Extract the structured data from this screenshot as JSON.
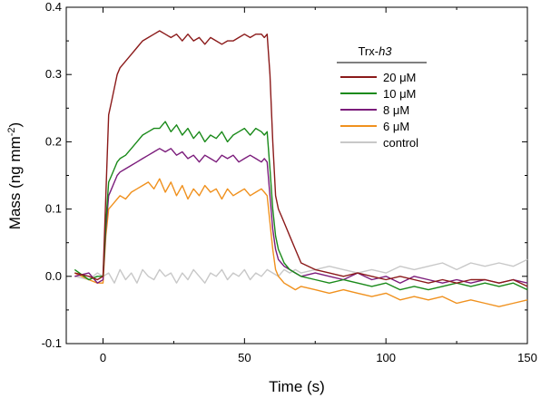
{
  "chart_data": {
    "type": "line",
    "xlabel": "Time (s)",
    "ylabel_main": "Mass (ng mm",
    "ylabel_sup": "-2",
    "ylabel_end": ")",
    "xlim": [
      -13,
      150
    ],
    "ylim": [
      -0.1,
      0.4
    ],
    "xticks": [
      0,
      50,
      100,
      150
    ],
    "xtick_labels": [
      "0",
      "50",
      "100",
      "150"
    ],
    "yticks": [
      -0.1,
      0.0,
      0.1,
      0.2,
      0.3,
      0.4
    ],
    "ytick_labels": [
      "-0.1",
      "0.0",
      "0.1",
      "0.2",
      "0.3",
      "0.4"
    ],
    "legend": {
      "title_plain": "Trx-",
      "title_italic": "h3",
      "placement": "top-right"
    },
    "series": [
      {
        "name": "20 μM",
        "color": "#8b1a1a",
        "x": [
          -10,
          -5,
          -2,
          0,
          1,
          2,
          3,
          4,
          5,
          6,
          8,
          10,
          12,
          14,
          16,
          18,
          20,
          22,
          24,
          26,
          28,
          30,
          32,
          34,
          36,
          38,
          40,
          42,
          44,
          46,
          48,
          50,
          52,
          54,
          56,
          57,
          58,
          59,
          60,
          61,
          62,
          63,
          64,
          66,
          68,
          70,
          75,
          80,
          85,
          90,
          95,
          100,
          105,
          110,
          115,
          120,
          125,
          130,
          135,
          140,
          145,
          150
        ],
        "y": [
          0.005,
          0.0,
          -0.005,
          0.0,
          0.12,
          0.24,
          0.26,
          0.28,
          0.3,
          0.31,
          0.32,
          0.33,
          0.34,
          0.35,
          0.355,
          0.36,
          0.365,
          0.36,
          0.355,
          0.36,
          0.35,
          0.36,
          0.35,
          0.355,
          0.345,
          0.355,
          0.35,
          0.345,
          0.35,
          0.35,
          0.355,
          0.36,
          0.355,
          0.36,
          0.36,
          0.355,
          0.36,
          0.3,
          0.2,
          0.12,
          0.1,
          0.09,
          0.08,
          0.06,
          0.04,
          0.02,
          0.01,
          0.005,
          0.0,
          0.005,
          0.0,
          -0.005,
          0.0,
          -0.005,
          -0.01,
          -0.005,
          -0.01,
          -0.005,
          -0.005,
          -0.01,
          -0.005,
          -0.015
        ]
      },
      {
        "name": "10 μM",
        "color": "#1a8a1a",
        "x": [
          -10,
          -5,
          -2,
          0,
          1,
          2,
          3,
          4,
          5,
          6,
          8,
          10,
          12,
          14,
          16,
          18,
          20,
          22,
          24,
          26,
          28,
          30,
          32,
          34,
          36,
          38,
          40,
          42,
          44,
          46,
          48,
          50,
          52,
          54,
          56,
          57,
          58,
          59,
          60,
          61,
          62,
          63,
          64,
          66,
          68,
          70,
          75,
          80,
          85,
          90,
          95,
          100,
          105,
          110,
          115,
          120,
          125,
          130,
          135,
          140,
          145,
          150
        ],
        "y": [
          0.01,
          -0.005,
          0.0,
          0.0,
          0.08,
          0.14,
          0.15,
          0.16,
          0.17,
          0.175,
          0.18,
          0.19,
          0.2,
          0.21,
          0.215,
          0.22,
          0.22,
          0.23,
          0.215,
          0.225,
          0.21,
          0.22,
          0.205,
          0.215,
          0.2,
          0.21,
          0.205,
          0.215,
          0.2,
          0.21,
          0.215,
          0.22,
          0.21,
          0.22,
          0.215,
          0.21,
          0.215,
          0.16,
          0.1,
          0.06,
          0.04,
          0.03,
          0.02,
          0.01,
          0.005,
          0.0,
          -0.005,
          -0.01,
          -0.005,
          -0.01,
          -0.015,
          -0.01,
          -0.02,
          -0.015,
          -0.02,
          -0.015,
          -0.01,
          -0.015,
          -0.01,
          -0.015,
          -0.01,
          -0.02
        ]
      },
      {
        "name": "8 μM",
        "color": "#7b1c7b",
        "x": [
          -10,
          -5,
          -2,
          0,
          1,
          2,
          3,
          4,
          5,
          6,
          8,
          10,
          12,
          14,
          16,
          18,
          20,
          22,
          24,
          26,
          28,
          30,
          32,
          34,
          36,
          38,
          40,
          42,
          44,
          46,
          48,
          50,
          52,
          54,
          56,
          57,
          58,
          59,
          60,
          61,
          62,
          63,
          64,
          66,
          68,
          70,
          75,
          80,
          85,
          90,
          95,
          100,
          105,
          110,
          115,
          120,
          125,
          130,
          135,
          140,
          145,
          150
        ],
        "y": [
          0.0,
          0.005,
          -0.01,
          -0.005,
          0.07,
          0.12,
          0.13,
          0.14,
          0.15,
          0.155,
          0.16,
          0.165,
          0.17,
          0.175,
          0.18,
          0.185,
          0.19,
          0.185,
          0.19,
          0.18,
          0.185,
          0.175,
          0.18,
          0.17,
          0.18,
          0.175,
          0.17,
          0.18,
          0.175,
          0.18,
          0.17,
          0.175,
          0.18,
          0.175,
          0.17,
          0.175,
          0.17,
          0.12,
          0.07,
          0.04,
          0.025,
          0.02,
          0.015,
          0.01,
          0.005,
          0.0,
          0.005,
          0.0,
          -0.005,
          0.005,
          -0.005,
          0.0,
          -0.01,
          0.0,
          -0.005,
          -0.01,
          -0.005,
          -0.01,
          -0.005,
          -0.01,
          -0.005,
          -0.01
        ]
      },
      {
        "name": "6 μM",
        "color": "#f0911e",
        "x": [
          -10,
          -5,
          -2,
          0,
          1,
          2,
          3,
          4,
          5,
          6,
          8,
          10,
          12,
          14,
          16,
          18,
          20,
          22,
          24,
          26,
          28,
          30,
          32,
          34,
          36,
          38,
          40,
          42,
          44,
          46,
          48,
          50,
          52,
          54,
          56,
          57,
          58,
          59,
          60,
          61,
          62,
          63,
          64,
          66,
          68,
          70,
          75,
          80,
          85,
          90,
          95,
          100,
          105,
          110,
          115,
          120,
          125,
          130,
          135,
          140,
          145,
          150
        ],
        "y": [
          0.005,
          -0.005,
          -0.01,
          -0.01,
          0.06,
          0.1,
          0.105,
          0.11,
          0.115,
          0.12,
          0.115,
          0.125,
          0.13,
          0.135,
          0.14,
          0.13,
          0.145,
          0.125,
          0.14,
          0.12,
          0.135,
          0.115,
          0.13,
          0.12,
          0.135,
          0.125,
          0.13,
          0.115,
          0.13,
          0.12,
          0.125,
          0.13,
          0.12,
          0.125,
          0.13,
          0.125,
          0.12,
          0.08,
          0.04,
          0.01,
          0.0,
          -0.005,
          -0.01,
          -0.015,
          -0.02,
          -0.015,
          -0.02,
          -0.025,
          -0.02,
          -0.025,
          -0.03,
          -0.025,
          -0.035,
          -0.03,
          -0.035,
          -0.03,
          -0.04,
          -0.035,
          -0.04,
          -0.045,
          -0.04,
          -0.035
        ]
      },
      {
        "name": "control",
        "color": "#c8c8c8",
        "x": [
          -10,
          -5,
          -2,
          0,
          2,
          4,
          6,
          8,
          10,
          12,
          14,
          16,
          18,
          20,
          22,
          24,
          26,
          28,
          30,
          32,
          34,
          36,
          38,
          40,
          42,
          44,
          46,
          48,
          50,
          52,
          54,
          56,
          58,
          60,
          62,
          64,
          66,
          68,
          70,
          75,
          80,
          85,
          90,
          95,
          100,
          105,
          110,
          115,
          120,
          125,
          130,
          135,
          140,
          145,
          150
        ],
        "y": [
          0.0,
          -0.005,
          0.005,
          0.0,
          0.005,
          -0.01,
          0.01,
          -0.005,
          0.005,
          -0.01,
          0.01,
          0.0,
          -0.005,
          0.01,
          0.0,
          0.005,
          -0.01,
          0.005,
          -0.005,
          0.01,
          0.0,
          -0.01,
          0.005,
          0.0,
          0.01,
          -0.005,
          0.005,
          0.0,
          0.01,
          -0.005,
          0.005,
          0.0,
          0.01,
          0.005,
          0.0,
          0.01,
          0.005,
          0.01,
          0.005,
          0.01,
          0.015,
          0.01,
          0.005,
          0.01,
          0.005,
          0.015,
          0.01,
          0.015,
          0.02,
          0.01,
          0.02,
          0.015,
          0.02,
          0.015,
          0.025
        ]
      }
    ]
  }
}
